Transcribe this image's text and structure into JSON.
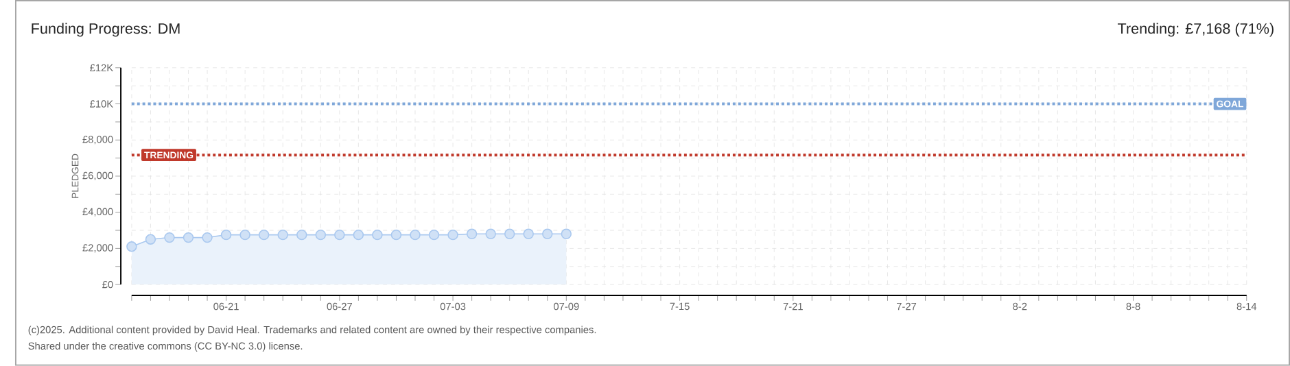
{
  "chart_data": {
    "type": "area",
    "title": "Funding Progress: DM",
    "subtitle": "Trending: £7,168 (71%)",
    "ylabel": "PLEDGED",
    "categories": [
      null,
      null,
      null,
      null,
      null,
      "06-21",
      null,
      null,
      null,
      null,
      null,
      "06-27",
      null,
      null,
      null,
      null,
      null,
      "07-03",
      null,
      null,
      null,
      null,
      null,
      "07-09",
      null,
      null,
      null,
      null,
      null,
      "7-15",
      null,
      null,
      null,
      null,
      null,
      "7-21",
      null,
      null,
      null,
      null,
      null,
      "7-27",
      null,
      null,
      null,
      null,
      null,
      "8-2",
      null,
      null,
      null,
      null,
      null,
      "8-8",
      null,
      null,
      null,
      null,
      null,
      "8-14"
    ],
    "series": [
      {
        "color": "#a9c8ef",
        "values": [
          2100,
          2500,
          2600,
          2600,
          2600,
          2750,
          2750,
          2750,
          2750,
          2750,
          2750,
          2750,
          2750,
          2750,
          2750,
          2750,
          2750,
          2750,
          2800,
          2800,
          2800,
          2800,
          2800,
          2800,
          null,
          null,
          null,
          null,
          null,
          null,
          null,
          null,
          null,
          null,
          null,
          null,
          null,
          null,
          null,
          null,
          null,
          null,
          null,
          null,
          null,
          null,
          null,
          null,
          null,
          null,
          null,
          null,
          null,
          null,
          null,
          null,
          null,
          null,
          null,
          null
        ]
      }
    ],
    "ylim": [
      0,
      12000
    ],
    "yticks": [
      {
        "value": 0,
        "label": "£0"
      },
      {
        "value": 1000,
        "label": null
      },
      {
        "value": 2000,
        "label": "£2,000"
      },
      {
        "value": 3000,
        "label": null
      },
      {
        "value": 4000,
        "label": "£4,000"
      },
      {
        "value": 5000,
        "label": null
      },
      {
        "value": 6000,
        "label": "£6,000"
      },
      {
        "value": 7000,
        "label": null
      },
      {
        "value": 8000,
        "label": "£8,000"
      },
      {
        "value": 9000,
        "label": null
      },
      {
        "value": 10000,
        "label": "£10K"
      },
      {
        "value": 11000,
        "label": null
      },
      {
        "value": 12000,
        "label": "£12K"
      }
    ],
    "ref_lines": [
      {
        "axis": "y",
        "value": 10000,
        "label": "GOAL",
        "color": "#7fa7d9",
        "line_style": "dotted"
      },
      {
        "axis": "y",
        "value": 7168,
        "label": "TRENDING",
        "color": "#c0392b",
        "line_style": "dotted"
      }
    ],
    "grid": true,
    "marker": "circle",
    "annotations": [
      "(c)2025. Additional content provided by David Heal. Trademarks and related content are owned by their respective companies.",
      "Shared under the creative commons (CC BY-NC 3.0) license."
    ]
  }
}
